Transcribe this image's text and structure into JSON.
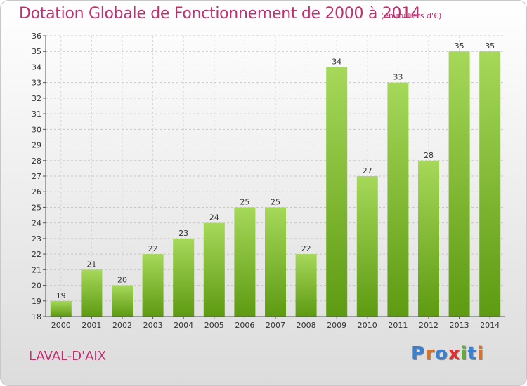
{
  "header": {
    "title": "Dotation Globale de Fonctionnement de 2000 à 2014",
    "subtitle": "(en milliers d'€)"
  },
  "footer": {
    "commune": "LAVAL-D'AIX",
    "logo_text": "Proxiti"
  },
  "colors": {
    "title": "#c03070",
    "bar_light": "#a6d85a",
    "bar_dark": "#5e9a12",
    "logo": [
      "#3a7fd0",
      "#e07020",
      "#3a7fd0",
      "#e03030",
      "#60b030",
      "#3a7fd0",
      "#e07020"
    ]
  },
  "chart_data": {
    "type": "bar",
    "title": "Dotation Globale de Fonctionnement de 2000 à 2014",
    "subtitle": "(en milliers d'€)",
    "categories": [
      "2000",
      "2001",
      "2002",
      "2003",
      "2004",
      "2005",
      "2006",
      "2007",
      "2008",
      "2009",
      "2010",
      "2011",
      "2012",
      "2013",
      "2014"
    ],
    "values": [
      19,
      21,
      20,
      22,
      23,
      24,
      25,
      25,
      22,
      34,
      27,
      33,
      28,
      35,
      35
    ],
    "ylim": [
      18,
      36
    ],
    "yticks": [
      18,
      19,
      20,
      21,
      22,
      23,
      24,
      25,
      26,
      27,
      28,
      29,
      30,
      31,
      32,
      33,
      34,
      35,
      36
    ],
    "grid": true,
    "data_labels": true
  }
}
